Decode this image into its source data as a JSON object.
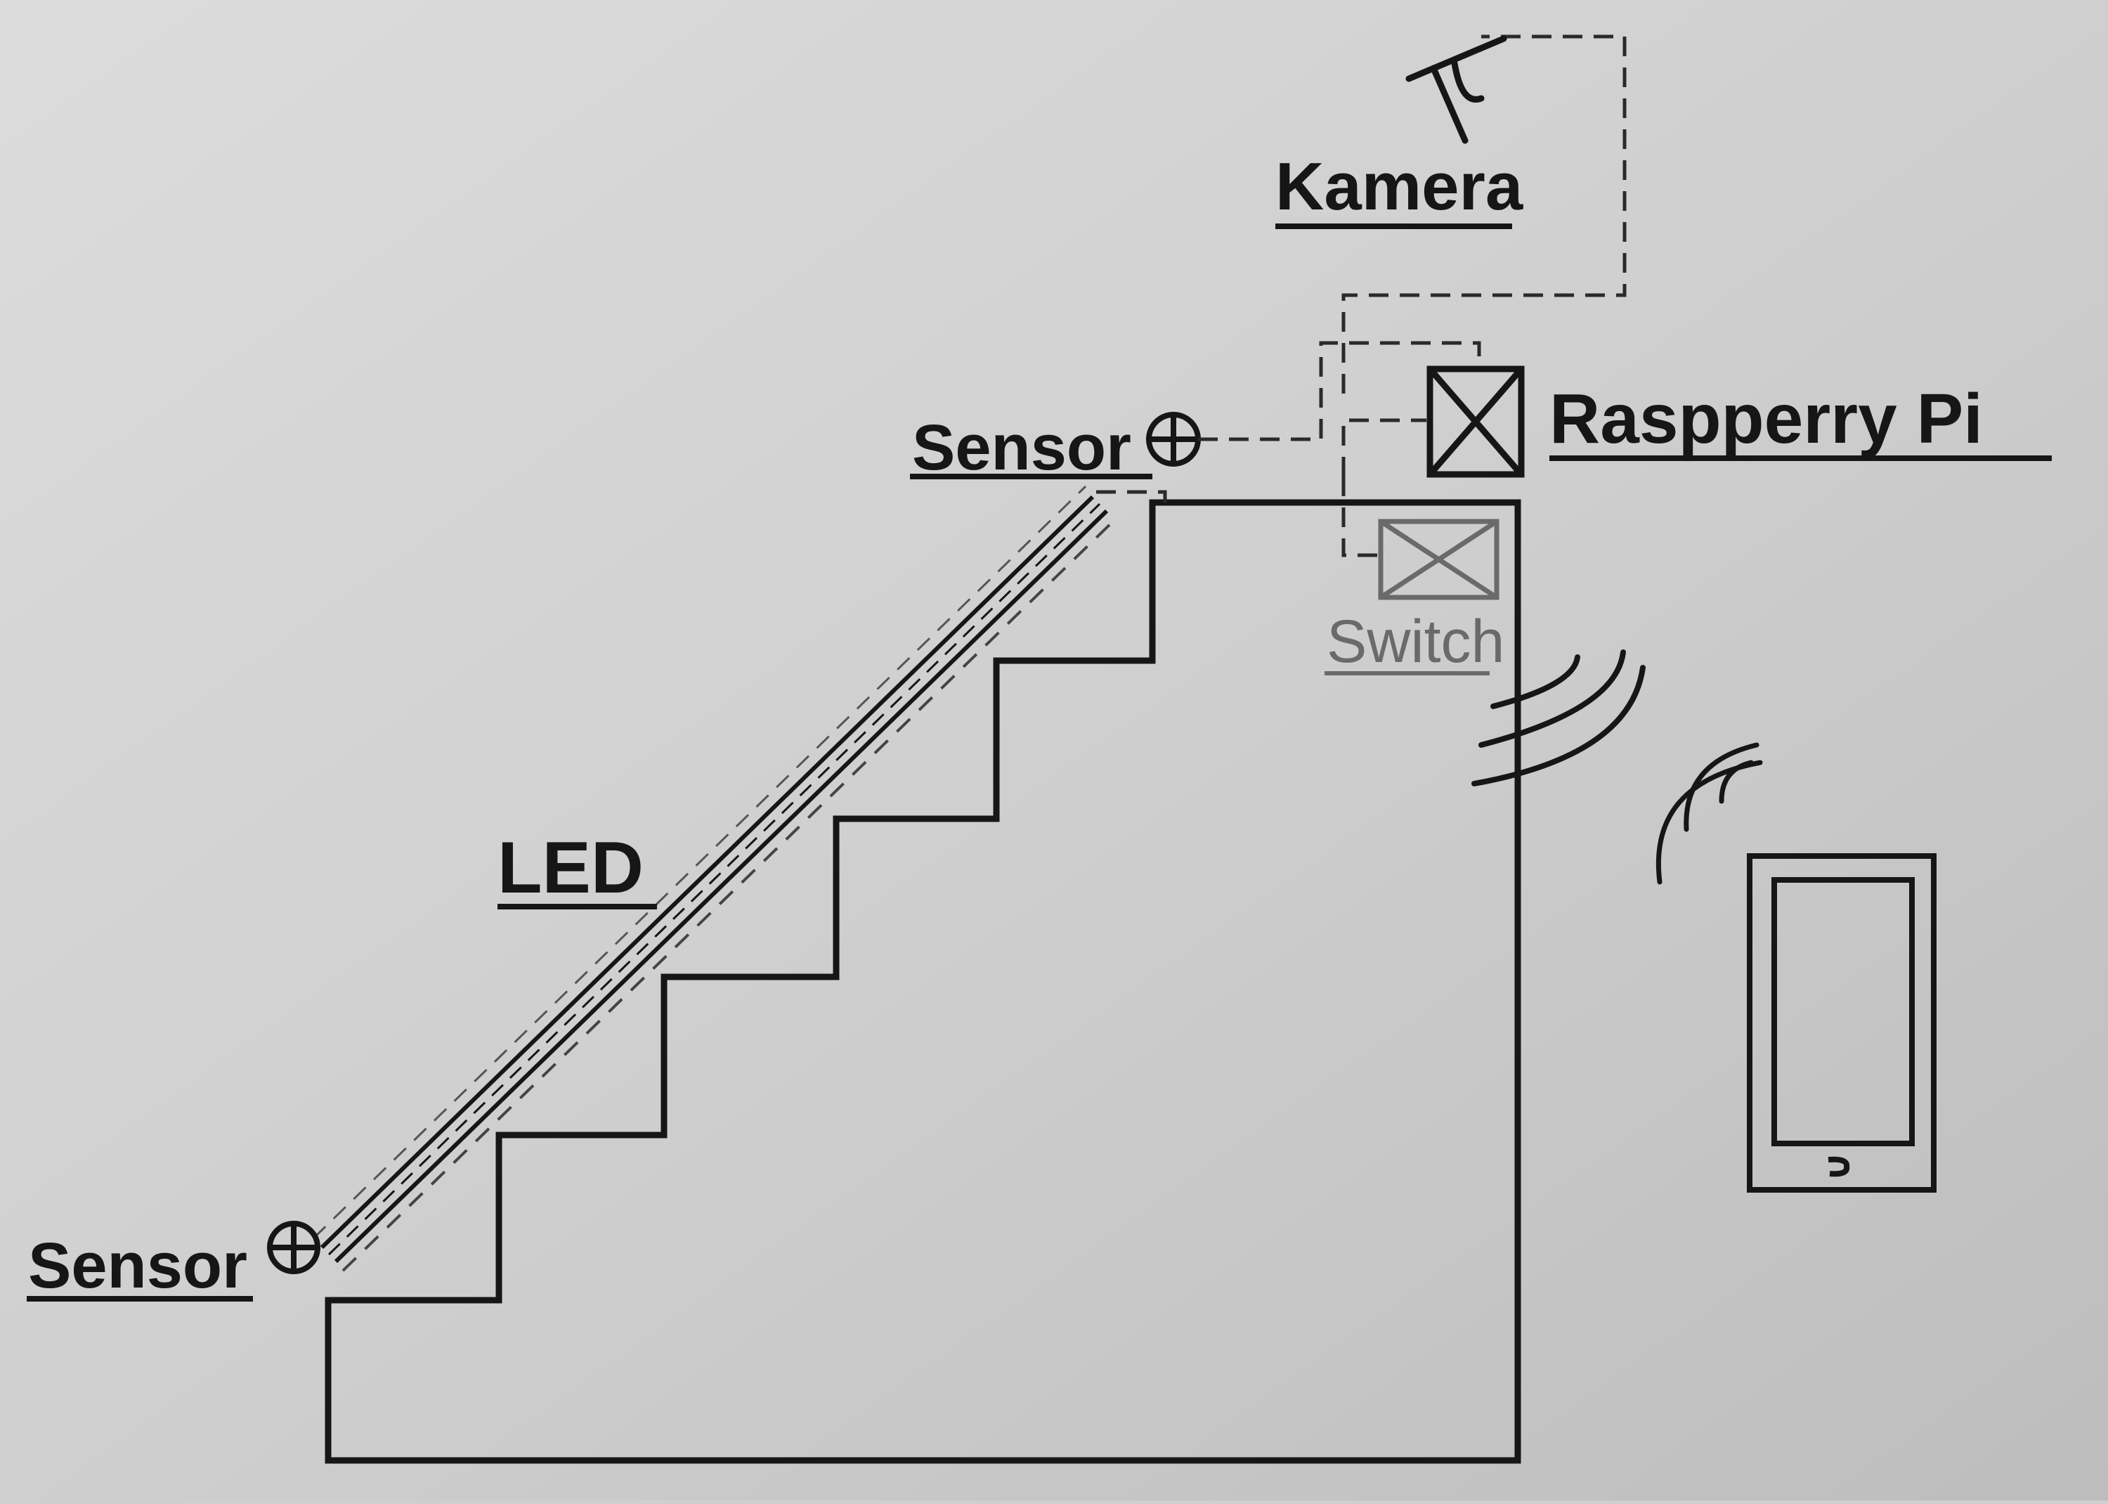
{
  "labels": {
    "camera": "Kamera",
    "raspberry": "Raspperry Pi",
    "switch": "Switch",
    "led": "LED",
    "sensor_top": "Sensor",
    "sensor_bottom": "Sensor"
  },
  "colors": {
    "paper": "#cfcfcf",
    "ink": "#161616",
    "faded_ink": "#6a6a6a"
  },
  "icons": {
    "camera": "camera-icon",
    "raspberry": "crossed-box-icon",
    "switch": "crossed-box-icon",
    "sensor": "circle-plus-icon",
    "phone": "smartphone-icon",
    "wifi": "wireless-waves-icon"
  }
}
